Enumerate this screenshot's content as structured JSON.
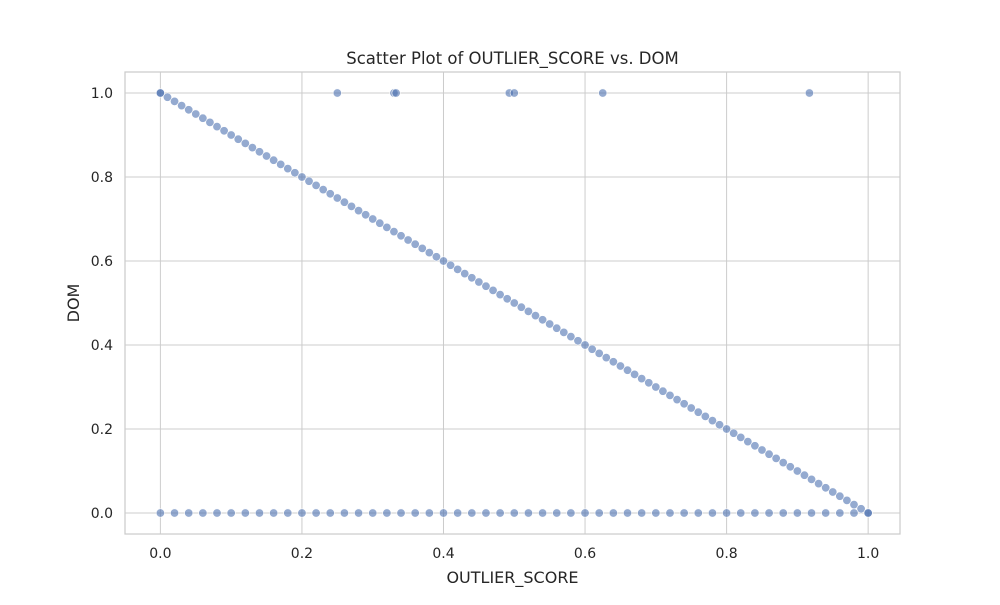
{
  "chart_data": {
    "type": "scatter",
    "title": "Scatter Plot of OUTLIER_SCORE vs. DOM",
    "xlabel": "OUTLIER_SCORE",
    "ylabel": "DOM",
    "xlim": [
      -0.05,
      1.045
    ],
    "ylim": [
      -0.05,
      1.05
    ],
    "xticks": [
      0.0,
      0.2,
      0.4,
      0.6,
      0.8,
      1.0
    ],
    "yticks": [
      0.0,
      0.2,
      0.4,
      0.6,
      0.8,
      1.0
    ],
    "xtick_labels": [
      "0.0",
      "0.2",
      "0.4",
      "0.6",
      "0.8",
      "1.0"
    ],
    "ytick_labels": [
      "0.0",
      "0.2",
      "0.4",
      "0.6",
      "0.8",
      "1.0"
    ],
    "grid": true,
    "color": "#4c72b0",
    "marker_alpha": 0.6,
    "series": [
      {
        "points": [
          [
            0.0,
            1.0
          ],
          [
            0.25,
            1.0
          ],
          [
            0.33,
            1.0
          ],
          [
            0.333,
            1.0
          ],
          [
            0.493,
            1.0
          ],
          [
            0.5,
            1.0
          ],
          [
            0.625,
            1.0
          ],
          [
            0.917,
            1.0
          ],
          [
            0.0,
            1.0
          ],
          [
            0.01,
            0.99
          ],
          [
            0.02,
            0.98
          ],
          [
            0.03,
            0.97
          ],
          [
            0.04,
            0.96
          ],
          [
            0.05,
            0.95
          ],
          [
            0.06,
            0.94
          ],
          [
            0.07,
            0.93
          ],
          [
            0.08,
            0.92
          ],
          [
            0.09,
            0.91
          ],
          [
            0.1,
            0.9
          ],
          [
            0.11,
            0.89
          ],
          [
            0.12,
            0.88
          ],
          [
            0.13,
            0.87
          ],
          [
            0.14,
            0.86
          ],
          [
            0.15,
            0.85
          ],
          [
            0.16,
            0.84
          ],
          [
            0.17,
            0.83
          ],
          [
            0.18,
            0.82
          ],
          [
            0.19,
            0.81
          ],
          [
            0.2,
            0.8
          ],
          [
            0.21,
            0.79
          ],
          [
            0.22,
            0.78
          ],
          [
            0.23,
            0.77
          ],
          [
            0.24,
            0.76
          ],
          [
            0.25,
            0.75
          ],
          [
            0.26,
            0.74
          ],
          [
            0.27,
            0.73
          ],
          [
            0.28,
            0.72
          ],
          [
            0.29,
            0.71
          ],
          [
            0.3,
            0.7
          ],
          [
            0.31,
            0.69
          ],
          [
            0.32,
            0.68
          ],
          [
            0.33,
            0.67
          ],
          [
            0.34,
            0.66
          ],
          [
            0.35,
            0.65
          ],
          [
            0.36,
            0.64
          ],
          [
            0.37,
            0.63
          ],
          [
            0.38,
            0.62
          ],
          [
            0.39,
            0.61
          ],
          [
            0.4,
            0.6
          ],
          [
            0.41,
            0.59
          ],
          [
            0.42,
            0.58
          ],
          [
            0.43,
            0.57
          ],
          [
            0.44,
            0.56
          ],
          [
            0.45,
            0.55
          ],
          [
            0.46,
            0.54
          ],
          [
            0.47,
            0.53
          ],
          [
            0.48,
            0.52
          ],
          [
            0.49,
            0.51
          ],
          [
            0.5,
            0.5
          ],
          [
            0.51,
            0.49
          ],
          [
            0.52,
            0.48
          ],
          [
            0.53,
            0.47
          ],
          [
            0.54,
            0.46
          ],
          [
            0.55,
            0.45
          ],
          [
            0.56,
            0.44
          ],
          [
            0.57,
            0.43
          ],
          [
            0.58,
            0.42
          ],
          [
            0.59,
            0.41
          ],
          [
            0.6,
            0.4
          ],
          [
            0.61,
            0.39
          ],
          [
            0.62,
            0.38
          ],
          [
            0.63,
            0.37
          ],
          [
            0.64,
            0.36
          ],
          [
            0.65,
            0.35
          ],
          [
            0.66,
            0.34
          ],
          [
            0.67,
            0.33
          ],
          [
            0.68,
            0.32
          ],
          [
            0.69,
            0.31
          ],
          [
            0.7,
            0.3
          ],
          [
            0.71,
            0.29
          ],
          [
            0.72,
            0.28
          ],
          [
            0.73,
            0.27
          ],
          [
            0.74,
            0.26
          ],
          [
            0.75,
            0.25
          ],
          [
            0.76,
            0.24
          ],
          [
            0.77,
            0.23
          ],
          [
            0.78,
            0.22
          ],
          [
            0.79,
            0.21
          ],
          [
            0.8,
            0.2
          ],
          [
            0.81,
            0.19
          ],
          [
            0.82,
            0.18
          ],
          [
            0.83,
            0.17
          ],
          [
            0.84,
            0.16
          ],
          [
            0.85,
            0.15
          ],
          [
            0.86,
            0.14
          ],
          [
            0.87,
            0.13
          ],
          [
            0.88,
            0.12
          ],
          [
            0.89,
            0.11
          ],
          [
            0.9,
            0.1
          ],
          [
            0.91,
            0.09
          ],
          [
            0.92,
            0.08
          ],
          [
            0.93,
            0.07
          ],
          [
            0.94,
            0.06
          ],
          [
            0.95,
            0.05
          ],
          [
            0.96,
            0.04
          ],
          [
            0.97,
            0.03
          ],
          [
            0.98,
            0.02
          ],
          [
            0.99,
            0.01
          ],
          [
            1.0,
            0.0
          ],
          [
            0.0,
            0.0
          ],
          [
            0.02,
            0.0
          ],
          [
            0.04,
            0.0
          ],
          [
            0.06,
            0.0
          ],
          [
            0.08,
            0.0
          ],
          [
            0.1,
            0.0
          ],
          [
            0.12,
            0.0
          ],
          [
            0.14,
            0.0
          ],
          [
            0.16,
            0.0
          ],
          [
            0.18,
            0.0
          ],
          [
            0.2,
            0.0
          ],
          [
            0.22,
            0.0
          ],
          [
            0.24,
            0.0
          ],
          [
            0.26,
            0.0
          ],
          [
            0.28,
            0.0
          ],
          [
            0.3,
            0.0
          ],
          [
            0.32,
            0.0
          ],
          [
            0.34,
            0.0
          ],
          [
            0.36,
            0.0
          ],
          [
            0.38,
            0.0
          ],
          [
            0.4,
            0.0
          ],
          [
            0.42,
            0.0
          ],
          [
            0.44,
            0.0
          ],
          [
            0.46,
            0.0
          ],
          [
            0.48,
            0.0
          ],
          [
            0.5,
            0.0
          ],
          [
            0.52,
            0.0
          ],
          [
            0.54,
            0.0
          ],
          [
            0.56,
            0.0
          ],
          [
            0.58,
            0.0
          ],
          [
            0.6,
            0.0
          ],
          [
            0.62,
            0.0
          ],
          [
            0.64,
            0.0
          ],
          [
            0.66,
            0.0
          ],
          [
            0.68,
            0.0
          ],
          [
            0.7,
            0.0
          ],
          [
            0.72,
            0.0
          ],
          [
            0.74,
            0.0
          ],
          [
            0.76,
            0.0
          ],
          [
            0.78,
            0.0
          ],
          [
            0.8,
            0.0
          ],
          [
            0.82,
            0.0
          ],
          [
            0.84,
            0.0
          ],
          [
            0.86,
            0.0
          ],
          [
            0.88,
            0.0
          ],
          [
            0.9,
            0.0
          ],
          [
            0.92,
            0.0
          ],
          [
            0.94,
            0.0
          ],
          [
            0.96,
            0.0
          ],
          [
            0.98,
            0.0
          ],
          [
            1.0,
            0.0
          ]
        ]
      }
    ]
  }
}
